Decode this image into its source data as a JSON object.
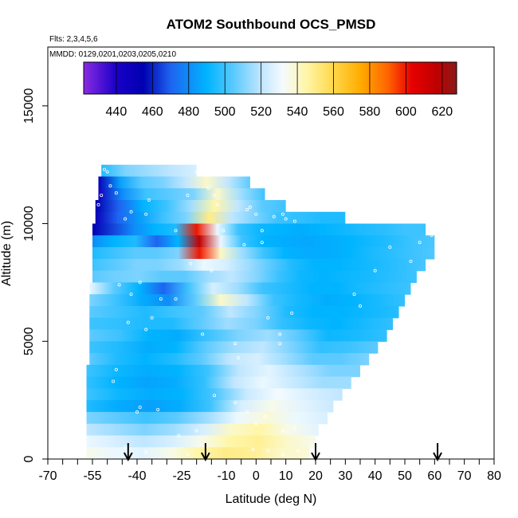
{
  "chart_data": {
    "type": "heatmap",
    "title": "ATOM2 Southbound OCS_PMSD",
    "subtitle_flights": "Flts: 2,3,4,5,6",
    "subtitle_dates": "MMDD: 0129,0201,0203,0205,0210",
    "xlabel": "Latitude (deg N)",
    "ylabel": "Altitude (m)",
    "xlim": [
      -70,
      80
    ],
    "ylim": [
      0,
      17500
    ],
    "x_tick_labels": [
      "-70",
      "-55",
      "-40",
      "-25",
      "-10",
      "0",
      "10",
      "20",
      "30",
      "40",
      "50",
      "60",
      "70",
      "80"
    ],
    "x_minor_step": 5,
    "y_tick_labels": [
      "0",
      "5000",
      "10000",
      "15000"
    ],
    "colorbar": {
      "min": 422,
      "max": 628,
      "tick_labels": [
        "440",
        "460",
        "480",
        "500",
        "520",
        "540",
        "560",
        "580",
        "600",
        "620"
      ],
      "stops": [
        {
          "v": 422,
          "color": "#8a2be2"
        },
        {
          "v": 440,
          "color": "#1a00c8"
        },
        {
          "v": 455,
          "color": "#0000b0"
        },
        {
          "v": 470,
          "color": "#1e64f0"
        },
        {
          "v": 490,
          "color": "#00b4ff"
        },
        {
          "v": 505,
          "color": "#5ccaff"
        },
        {
          "v": 520,
          "color": "#c0e6ff"
        },
        {
          "v": 532,
          "color": "#f4fbff"
        },
        {
          "v": 545,
          "color": "#fff6a8"
        },
        {
          "v": 560,
          "color": "#ffd84a"
        },
        {
          "v": 575,
          "color": "#ffac00"
        },
        {
          "v": 590,
          "color": "#ff6400"
        },
        {
          "v": 603,
          "color": "#e80000"
        },
        {
          "v": 617,
          "color": "#be0000"
        },
        {
          "v": 628,
          "color": "#8b1a1a"
        }
      ]
    },
    "layers": [
      {
        "alt": [
          12000,
          12500
        ],
        "lat": [
          -52,
          -20
        ],
        "values": [
          495,
          510,
          515,
          520,
          525
        ]
      },
      {
        "alt": [
          11500,
          12000
        ],
        "lat": [
          -53,
          -2
        ],
        "values": [
          450,
          485,
          505,
          510,
          520,
          540,
          520,
          505
        ]
      },
      {
        "alt": [
          11000,
          11500
        ],
        "lat": [
          -53,
          3
        ],
        "values": [
          445,
          480,
          500,
          505,
          510,
          540,
          515,
          500
        ]
      },
      {
        "alt": [
          10500,
          11000
        ],
        "lat": [
          -54,
          10
        ],
        "values": [
          455,
          470,
          490,
          500,
          515,
          545,
          520,
          505,
          500
        ]
      },
      {
        "alt": [
          10000,
          10500
        ],
        "lat": [
          -54,
          30
        ],
        "values": [
          450,
          470,
          485,
          500,
          510,
          550,
          520,
          510,
          500,
          498,
          495,
          495
        ]
      },
      {
        "alt": [
          9500,
          10000
        ],
        "lat": [
          -55,
          57
        ],
        "values": [
          455,
          465,
          480,
          490,
          495,
          600,
          530,
          500,
          492,
          490,
          488,
          490,
          492,
          495,
          497,
          500,
          500
        ]
      },
      {
        "alt": [
          9000,
          9500
        ],
        "lat": [
          -55,
          60
        ],
        "values": [
          480,
          490,
          495,
          470,
          490,
          615,
          530,
          500,
          490,
          488,
          487,
          488,
          490,
          493,
          496,
          500,
          502
        ]
      },
      {
        "alt": [
          8500,
          9000
        ],
        "lat": [
          -55,
          60
        ],
        "values": [
          495,
          500,
          505,
          505,
          510,
          600,
          540,
          515,
          500,
          490,
          488,
          488,
          490,
          494,
          497,
          500,
          503
        ]
      },
      {
        "alt": [
          8000,
          8500
        ],
        "lat": [
          -55,
          57
        ],
        "values": [
          500,
          505,
          510,
          510,
          515,
          530,
          525,
          515,
          505,
          495,
          490,
          490,
          492,
          495,
          498,
          502
        ]
      },
      {
        "alt": [
          7500,
          8000
        ],
        "lat": [
          -55,
          54
        ],
        "values": [
          505,
          508,
          510,
          505,
          505,
          515,
          520,
          512,
          500,
          492,
          490,
          492,
          494,
          497,
          500
        ]
      },
      {
        "alt": [
          7000,
          7500
        ],
        "lat": [
          -56,
          52
        ],
        "values": [
          530,
          505,
          490,
          470,
          500,
          525,
          515,
          500,
          495,
          490,
          490,
          494,
          497,
          500
        ]
      },
      {
        "alt": [
          6500,
          7000
        ],
        "lat": [
          -56,
          50
        ],
        "values": [
          510,
          500,
          488,
          480,
          505,
          540,
          520,
          500,
          493,
          488,
          490,
          494,
          498
        ]
      },
      {
        "alt": [
          6000,
          6500
        ],
        "lat": [
          -56,
          48
        ],
        "values": [
          505,
          500,
          495,
          500,
          505,
          520,
          510,
          495,
          490,
          490,
          493,
          496
        ]
      },
      {
        "alt": [
          5500,
          6000
        ],
        "lat": [
          -56,
          46
        ],
        "values": [
          500,
          498,
          495,
          495,
          505,
          515,
          510,
          498,
          492,
          490,
          494,
          498
        ]
      },
      {
        "alt": [
          5000,
          5500
        ],
        "lat": [
          -56,
          44
        ],
        "values": [
          505,
          500,
          490,
          488,
          500,
          510,
          515,
          505,
          492,
          494,
          498
        ]
      },
      {
        "alt": [
          4500,
          5000
        ],
        "lat": [
          -56,
          41
        ],
        "values": [
          500,
          495,
          488,
          490,
          505,
          515,
          520,
          510,
          498,
          500,
          505
        ]
      },
      {
        "alt": [
          4000,
          4500
        ],
        "lat": [
          -56,
          38
        ],
        "values": [
          505,
          495,
          490,
          495,
          505,
          520,
          525,
          515,
          505,
          505,
          510
        ]
      },
      {
        "alt": [
          3500,
          4000
        ],
        "lat": [
          -57,
          35
        ],
        "values": [
          500,
          492,
          488,
          490,
          500,
          520,
          528,
          518,
          510,
          510
        ]
      },
      {
        "alt": [
          3000,
          3500
        ],
        "lat": [
          -57,
          32
        ],
        "values": [
          498,
          490,
          486,
          488,
          498,
          520,
          530,
          522,
          515,
          515
        ]
      },
      {
        "alt": [
          2500,
          3000
        ],
        "lat": [
          -57,
          29
        ],
        "values": [
          500,
          492,
          488,
          490,
          502,
          522,
          532,
          525,
          520
        ]
      },
      {
        "alt": [
          2000,
          2500
        ],
        "lat": [
          -57,
          26
        ],
        "values": [
          495,
          488,
          485,
          488,
          500,
          525,
          535,
          528,
          522
        ]
      },
      {
        "alt": [
          1500,
          2000
        ],
        "lat": [
          -57,
          24
        ],
        "values": [
          510,
          505,
          500,
          505,
          515,
          530,
          538,
          530,
          525
        ]
      },
      {
        "alt": [
          1000,
          1500
        ],
        "lat": [
          -57,
          21
        ],
        "values": [
          520,
          515,
          510,
          515,
          525,
          540,
          545,
          535,
          528
        ]
      },
      {
        "alt": [
          500,
          1000
        ],
        "lat": [
          -57,
          20
        ],
        "values": [
          530,
          525,
          520,
          525,
          535,
          545,
          548,
          540,
          535
        ]
      },
      {
        "alt": [
          0,
          500
        ],
        "lat": [
          -57,
          18
        ],
        "values": [
          535,
          530,
          528,
          535,
          545,
          550,
          548,
          540,
          538
        ]
      }
    ],
    "sample_points": [
      [
        -51,
        12300
      ],
      [
        -50,
        12200
      ],
      [
        -49,
        11600
      ],
      [
        -47,
        11300
      ],
      [
        -36,
        11000
      ],
      [
        -23,
        11200
      ],
      [
        -14,
        11200
      ],
      [
        -16,
        11500
      ],
      [
        -13,
        10800
      ],
      [
        -3,
        10600
      ],
      [
        -2,
        10700
      ],
      [
        0,
        10400
      ],
      [
        6,
        10300
      ],
      [
        9,
        10400
      ],
      [
        10,
        10200
      ],
      [
        13,
        10100
      ],
      [
        -42,
        10500
      ],
      [
        -44,
        10200
      ],
      [
        -37,
        10400
      ],
      [
        -27,
        9700
      ],
      [
        -11,
        9700
      ],
      [
        2,
        9700
      ],
      [
        2,
        9200
      ],
      [
        -4,
        9100
      ],
      [
        -15,
        8000
      ],
      [
        -39,
        7500
      ],
      [
        -46,
        7400
      ],
      [
        -42,
        7000
      ],
      [
        -32,
        6800
      ],
      [
        -27,
        6800
      ],
      [
        -35,
        6000
      ],
      [
        -43,
        5800
      ],
      [
        -37,
        5500
      ],
      [
        -18,
        5300
      ],
      [
        -7,
        4900
      ],
      [
        8,
        4900
      ],
      [
        8,
        5300
      ],
      [
        4,
        6000
      ],
      [
        12,
        6200
      ],
      [
        -6,
        4300
      ],
      [
        -47,
        3800
      ],
      [
        -48,
        3300
      ],
      [
        -14,
        2700
      ],
      [
        -39,
        2200
      ],
      [
        -40,
        2000
      ],
      [
        -33,
        2100
      ],
      [
        -7,
        2400
      ],
      [
        -3,
        2000
      ],
      [
        0,
        1500
      ],
      [
        3,
        1800
      ],
      [
        9,
        1200
      ],
      [
        13,
        1300
      ],
      [
        -20,
        1200
      ],
      [
        -26,
        1000
      ],
      [
        -44,
        500
      ],
      [
        -37,
        300
      ],
      [
        -23,
        200
      ],
      [
        -16,
        250
      ],
      [
        -1,
        400
      ],
      [
        4,
        350
      ],
      [
        9,
        200
      ],
      [
        14,
        350
      ],
      [
        19,
        600
      ],
      [
        33,
        7000
      ],
      [
        35,
        6500
      ],
      [
        40,
        8000
      ],
      [
        45,
        9000
      ],
      [
        52,
        8400
      ],
      [
        59,
        9500
      ],
      [
        55,
        9200
      ],
      [
        -20,
        12200
      ],
      [
        -14,
        12100
      ],
      [
        -22,
        8300
      ],
      [
        -52,
        11200
      ],
      [
        -53,
        10800
      ]
    ],
    "arrow_latitudes": [
      -43,
      -17,
      20,
      61
    ]
  }
}
